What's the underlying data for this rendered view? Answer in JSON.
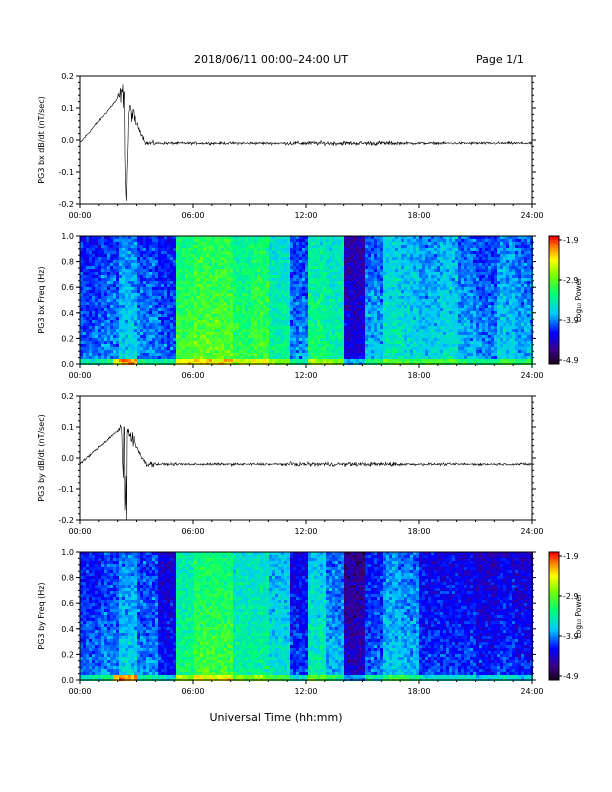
{
  "header": {
    "title": "2018/06/11  00:00–24:00 UT",
    "page": "Page 1/1"
  },
  "xlabel": "Universal Time (hh:mm)",
  "colorbar": {
    "ticks": [
      "-1.9",
      "-2.9",
      "-3.9",
      "-4.9"
    ],
    "label": "Log₁₀ Power"
  },
  "chart_data": [
    {
      "type": "line",
      "ylabel": "PG3 bx dB/dt (nT/sec)",
      "ylim": [
        -0.2,
        0.2
      ],
      "yticks": [
        "0.2",
        "0.1",
        "0.0",
        "-0.1",
        "-0.2"
      ],
      "xticks": [
        "00:00",
        "06:00",
        "12:00",
        "18:00",
        "24:00"
      ],
      "xlim_hours": [
        0,
        24
      ],
      "series": [
        {
          "x_hours": [
            0,
            2.3,
            2.45,
            2.6,
            3.5,
            11.5,
            15,
            16.5,
            24
          ],
          "y": [
            -0.01,
            0.15,
            -0.19,
            0.1,
            -0.01,
            -0.01,
            -0.01,
            -0.01,
            -0.01
          ]
        }
      ]
    },
    {
      "type": "heatmap",
      "ylabel": "PG3 bx Freq (Hz)",
      "ylim": [
        0.0,
        1.0
      ],
      "yticks": [
        "1.0",
        "0.8",
        "0.6",
        "0.4",
        "0.2",
        "0.0"
      ],
      "xticks": [
        "00:00",
        "06:00",
        "12:00",
        "18:00",
        "24:00"
      ],
      "xlim_hours": [
        0,
        24
      ],
      "zlim": [
        -4.9,
        -1.9
      ],
      "power_by_hour": [
        -3.9,
        -3.8,
        -3.6,
        -3.8,
        -3.9,
        -3.0,
        -2.9,
        -2.9,
        -3.1,
        -3.0,
        -3.3,
        -3.8,
        -3.2,
        -3.3,
        -4.2,
        -3.7,
        -3.4,
        -3.5,
        -3.6,
        -3.5,
        -3.7,
        -3.8,
        -3.6,
        -3.7
      ]
    },
    {
      "type": "line",
      "ylabel": "PG3 by dB/dt (nT/sec)",
      "ylim": [
        -0.2,
        0.2
      ],
      "yticks": [
        "0.2",
        "0.1",
        "0.0",
        "-0.1",
        "-0.2"
      ],
      "xticks": [
        "00:00",
        "06:00",
        "12:00",
        "18:00",
        "24:00"
      ],
      "xlim_hours": [
        0,
        24
      ],
      "series": [
        {
          "x_hours": [
            0,
            2.2,
            2.4,
            2.5,
            3.5,
            15,
            24
          ],
          "y": [
            -0.02,
            0.1,
            -0.2,
            0.09,
            -0.02,
            -0.02,
            -0.02
          ]
        }
      ]
    },
    {
      "type": "heatmap",
      "ylabel": "PG3 by Freq (Hz)",
      "ylim": [
        0.0,
        1.0
      ],
      "yticks": [
        "1.0",
        "0.8",
        "0.6",
        "0.4",
        "0.2",
        "0.0"
      ],
      "xticks": [
        "00:00",
        "06:00",
        "12:00",
        "18:00",
        "24:00"
      ],
      "xlim_hours": [
        0,
        24
      ],
      "zlim": [
        -4.9,
        -1.9
      ],
      "power_by_hour": [
        -3.9,
        -3.8,
        -3.6,
        -3.8,
        -4.1,
        -3.2,
        -3.0,
        -3.0,
        -3.3,
        -3.3,
        -3.5,
        -4.0,
        -3.4,
        -3.7,
        -4.3,
        -3.9,
        -3.6,
        -3.7,
        -4.0,
        -4.0,
        -4.0,
        -4.1,
        -4.0,
        -4.1
      ]
    }
  ]
}
